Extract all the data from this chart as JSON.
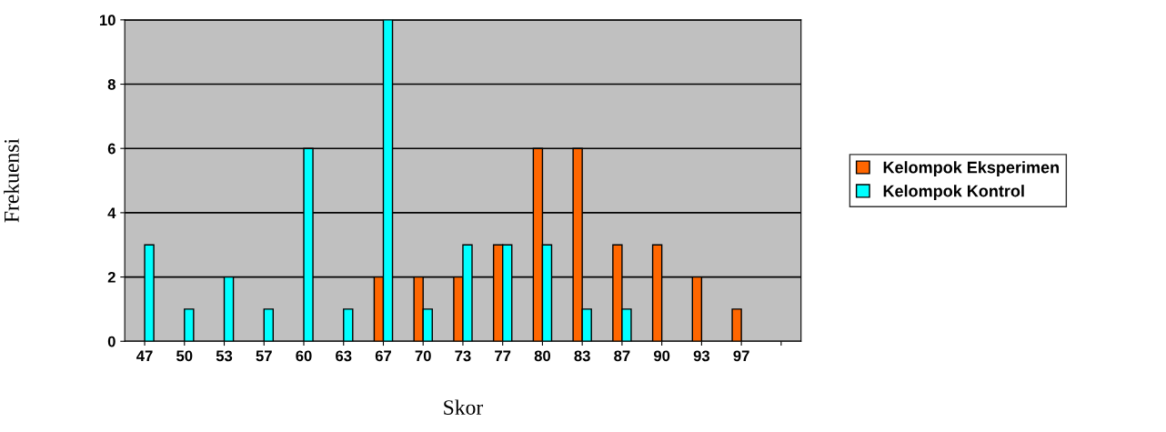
{
  "chart_data": {
    "type": "bar",
    "xlabel": "Skor",
    "ylabel": "Frekuensi",
    "categories": [
      "47",
      "50",
      "53",
      "57",
      "60",
      "63",
      "67",
      "70",
      "73",
      "77",
      "80",
      "83",
      "87",
      "90",
      "93",
      "97",
      null
    ],
    "series": [
      {
        "name": "Kelompok Eksperimen",
        "color": "#ff6600",
        "values": [
          null,
          null,
          null,
          null,
          null,
          null,
          2,
          2,
          2,
          3,
          6,
          6,
          3,
          3,
          2,
          1,
          null
        ]
      },
      {
        "name": "Kelompok Kontrol",
        "color": "#00ffff",
        "values": [
          3,
          1,
          2,
          1,
          6,
          1,
          10,
          1,
          3,
          3,
          3,
          1,
          1,
          null,
          null,
          null,
          null
        ]
      }
    ],
    "ylim": [
      0,
      10
    ],
    "yticks": [
      0,
      2,
      4,
      6,
      8,
      10
    ],
    "grid": "y",
    "legend": "right"
  }
}
